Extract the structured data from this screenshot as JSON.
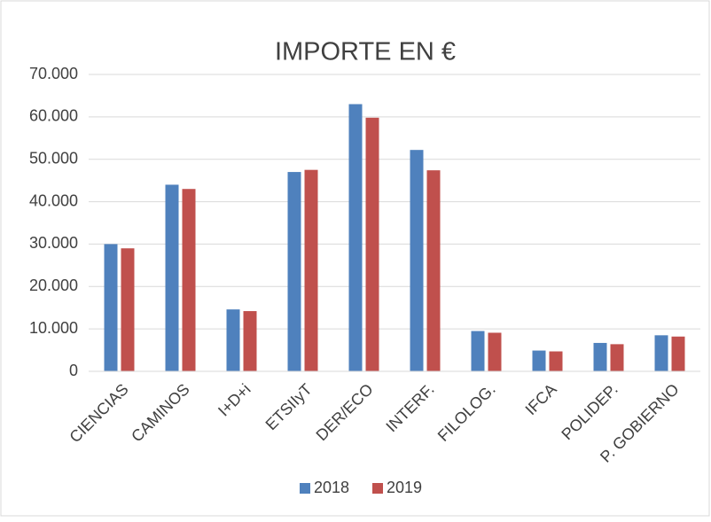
{
  "chart_data": {
    "type": "bar",
    "title": "IMPORTE EN €",
    "categories": [
      "CIENCIAS",
      "CAMINOS",
      "I+D+i",
      "ETSIIyT",
      "DER/ECO",
      "INTERF.",
      "FILOLOG.",
      "IFCA",
      "POLIDEP.",
      "P. GOBIERNO"
    ],
    "series": [
      {
        "name": "2018",
        "color": "#4f81bd",
        "values": [
          30000,
          44000,
          14600,
          47000,
          63000,
          52200,
          9500,
          4900,
          6700,
          8500
        ]
      },
      {
        "name": "2019",
        "color": "#c0504d",
        "values": [
          29000,
          43000,
          14200,
          47500,
          59800,
          47400,
          9100,
          4700,
          6400,
          8200
        ]
      }
    ],
    "ylim": [
      0,
      70000
    ],
    "yticks": [
      0,
      {
        "value": 10000,
        "label": "10.000"
      },
      {
        "value": 20000,
        "label": "20.000"
      },
      {
        "value": 30000,
        "label": "30.000"
      },
      {
        "value": 40000,
        "label": "40.000"
      },
      {
        "value": 50000,
        "label": "50.000"
      },
      {
        "value": 60000,
        "label": "60.000"
      },
      {
        "value": 70000,
        "label": "70.000"
      }
    ],
    "grid": true,
    "legend": "bottom"
  }
}
